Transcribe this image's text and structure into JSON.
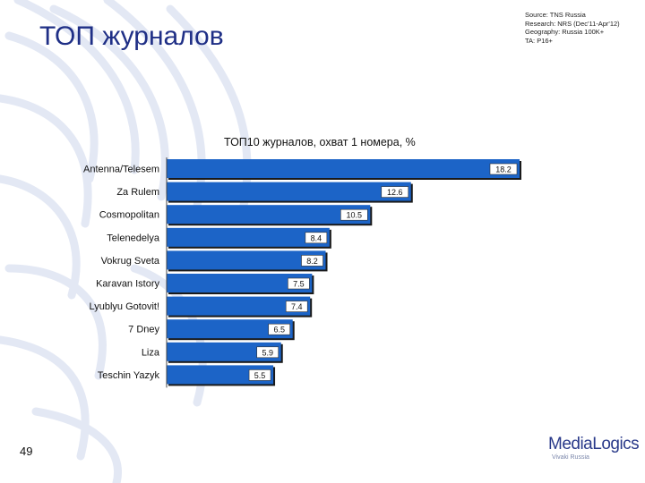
{
  "slide": {
    "title": "ТОП журналов",
    "page_number": "49"
  },
  "source": {
    "lines": [
      "Source: TNS Russia",
      "Research: NRS (Dec'11-Apr'12)",
      "Geography: Russia 100K+",
      "TA: P16+"
    ]
  },
  "logo": {
    "name": "MediaLogics",
    "tagline": "Vivaki Russia"
  },
  "colors": {
    "bar": "#1c64c7",
    "bar_shadow": "#1a1a1a",
    "title": "#1f2f86",
    "decor": "#e3e8f4"
  },
  "chart_data": {
    "type": "bar",
    "orientation": "horizontal",
    "title": "ТОП10 журналов, охват 1 номера, %",
    "categories": [
      "Antenna/Telesem",
      "Za Rulem",
      "Cosmopolitan",
      "Telenedelya",
      "Vokrug Sveta",
      "Karavan Istory",
      "Lyublyu Gotovit!",
      "7 Dney",
      "Liza",
      "Teschin Yazyk"
    ],
    "values": [
      18.2,
      12.6,
      10.5,
      8.4,
      8.2,
      7.5,
      7.4,
      6.5,
      5.9,
      5.5
    ],
    "value_labels": [
      "18.2",
      "12.6",
      "10.5",
      "8.4",
      "8.2",
      "7.5",
      "7.4",
      "6.5",
      "5.9",
      "5.5"
    ],
    "xlim": [
      0,
      18.2
    ],
    "grid": false,
    "legend": "none"
  }
}
